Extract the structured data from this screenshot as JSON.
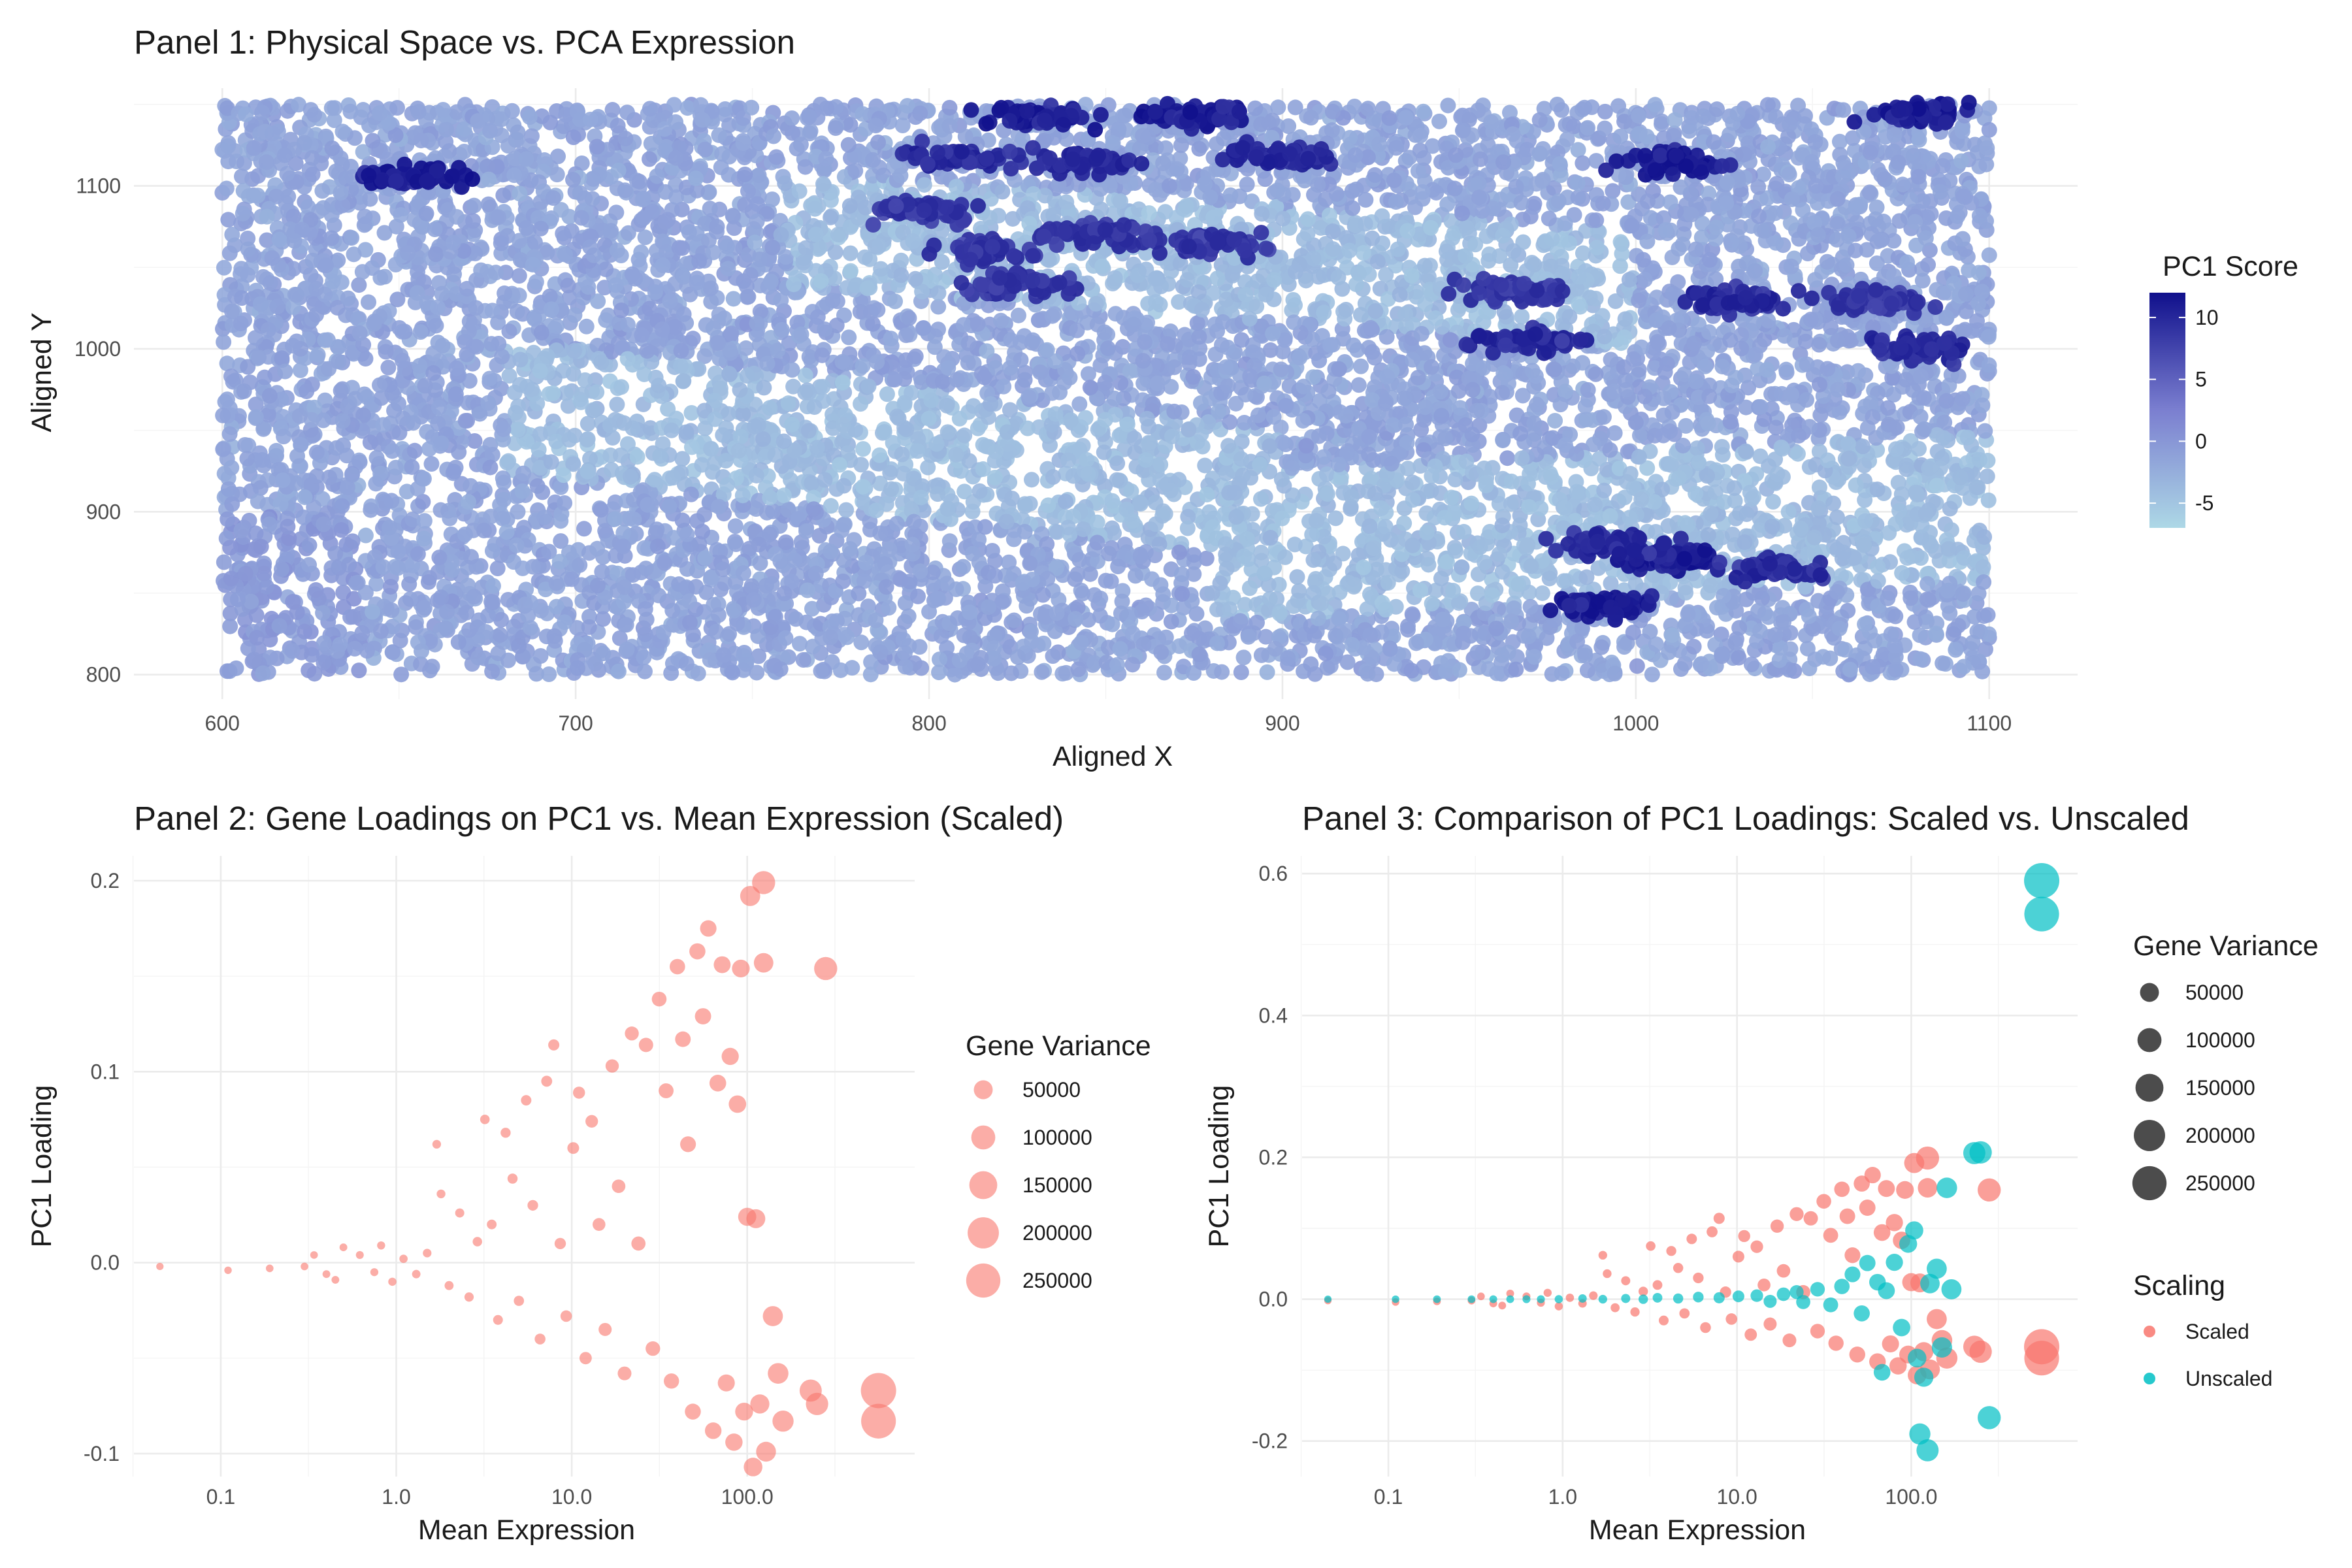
{
  "colors": {
    "gradient_low": "#add8e6",
    "gradient_mid": "#7b7fd0",
    "gradient_high": "#10108c",
    "scaled": "#f8766d",
    "unscaled": "#00bfc4",
    "size_key": "#000000"
  },
  "chart_data": [
    {
      "type": "scatter",
      "title": "Panel 1: Physical Space vs. PCA Expression",
      "xlabel": "Aligned X",
      "ylabel": "Aligned Y",
      "xlim": [
        575,
        1125
      ],
      "ylim": [
        785,
        1160
      ],
      "xticks": [
        600,
        700,
        800,
        900,
        1000,
        1100
      ],
      "yticks": [
        800,
        900,
        1000,
        1100
      ],
      "grid": true,
      "legend": {
        "title": "PC1 Score",
        "position": "right",
        "breaks": [
          10,
          5,
          0,
          -5
        ],
        "range": [
          -7,
          12
        ]
      },
      "color_by": "PC1 Score",
      "point_description": "dense tissue spots over x 600-1100, y 800-1150; background PC1 near -4 to 2 with dark clusters reaching ~12",
      "hotspots": [
        {
          "x": 655,
          "y": 1105,
          "pc1": 12
        },
        {
          "x": 830,
          "y": 1143,
          "pc1": 12
        },
        {
          "x": 875,
          "y": 1143,
          "pc1": 12
        },
        {
          "x": 1080,
          "y": 1145,
          "pc1": 12
        },
        {
          "x": 808,
          "y": 1118,
          "pc1": 11
        },
        {
          "x": 845,
          "y": 1115,
          "pc1": 11
        },
        {
          "x": 900,
          "y": 1118,
          "pc1": 11
        },
        {
          "x": 1010,
          "y": 1115,
          "pc1": 12
        },
        {
          "x": 800,
          "y": 1085,
          "pc1": 10
        },
        {
          "x": 850,
          "y": 1070,
          "pc1": 10
        },
        {
          "x": 815,
          "y": 1060,
          "pc1": 10
        },
        {
          "x": 880,
          "y": 1065,
          "pc1": 10
        },
        {
          "x": 825,
          "y": 1040,
          "pc1": 10
        },
        {
          "x": 965,
          "y": 1035,
          "pc1": 10
        },
        {
          "x": 1030,
          "y": 1030,
          "pc1": 11
        },
        {
          "x": 1070,
          "y": 1030,
          "pc1": 10
        },
        {
          "x": 970,
          "y": 1005,
          "pc1": 11
        },
        {
          "x": 1080,
          "y": 1000,
          "pc1": 11
        },
        {
          "x": 1010,
          "y": 870,
          "pc1": 12
        },
        {
          "x": 995,
          "y": 880,
          "pc1": 11
        },
        {
          "x": 1040,
          "y": 865,
          "pc1": 11
        },
        {
          "x": 990,
          "y": 842,
          "pc1": 12
        }
      ]
    },
    {
      "type": "scatter",
      "title": "Panel 2: Gene Loadings on PC1 vs. Mean Expression (Scaled)",
      "xlabel": "Mean Expression",
      "ylabel": "PC1 Loading",
      "xscale": "log10",
      "xlim": [
        0.032,
        900
      ],
      "ylim": [
        -0.112,
        0.213
      ],
      "xticks": [
        0.1,
        1.0,
        10.0,
        100.0
      ],
      "xticklabels": [
        "0.1",
        "1.0",
        "10.0",
        "100.0"
      ],
      "yticks": [
        -0.1,
        0.0,
        0.1,
        0.2
      ],
      "yticklabels": [
        "-0.1",
        "0.0",
        "0.1",
        "0.2"
      ],
      "grid": true,
      "legend": {
        "title": "Gene Variance",
        "position": "right",
        "breaks": [
          50000,
          100000,
          150000,
          200000,
          250000
        ]
      },
      "series": [
        {
          "name": "Scaled",
          "points": [
            [
              0.045,
              -0.002,
              200
            ],
            [
              0.11,
              -0.004,
              300
            ],
            [
              0.19,
              -0.003,
              400
            ],
            [
              0.3,
              -0.002,
              400
            ],
            [
              0.34,
              0.004,
              400
            ],
            [
              0.4,
              -0.006,
              500
            ],
            [
              0.45,
              -0.009,
              500
            ],
            [
              0.5,
              0.008,
              500
            ],
            [
              0.62,
              0.004,
              600
            ],
            [
              0.75,
              -0.005,
              700
            ],
            [
              0.82,
              0.009,
              800
            ],
            [
              0.95,
              -0.01,
              900
            ],
            [
              1.1,
              0.002,
              1000
            ],
            [
              1.3,
              -0.006,
              1200
            ],
            [
              1.5,
              0.005,
              1400
            ],
            [
              1.7,
              0.062,
              1500
            ],
            [
              1.8,
              0.036,
              1600
            ],
            [
              2.0,
              -0.012,
              2000
            ],
            [
              2.3,
              0.026,
              2200
            ],
            [
              2.6,
              -0.018,
              2500
            ],
            [
              2.9,
              0.011,
              2800
            ],
            [
              3.2,
              0.075,
              3000
            ],
            [
              3.5,
              0.02,
              3300
            ],
            [
              3.8,
              -0.03,
              3500
            ],
            [
              4.2,
              0.068,
              4000
            ],
            [
              4.6,
              0.044,
              4200
            ],
            [
              5.0,
              -0.02,
              4500
            ],
            [
              5.5,
              0.085,
              5000
            ],
            [
              6.0,
              0.03,
              5500
            ],
            [
              6.6,
              -0.04,
              6000
            ],
            [
              7.2,
              0.095,
              6500
            ],
            [
              7.9,
              0.114,
              7000
            ],
            [
              8.6,
              0.01,
              7500
            ],
            [
              9.3,
              -0.028,
              8000
            ],
            [
              10.2,
              0.06,
              9000
            ],
            [
              11.0,
              0.089,
              10000
            ],
            [
              12.0,
              -0.05,
              11000
            ],
            [
              13.0,
              0.074,
              12000
            ],
            [
              14.3,
              0.02,
              13000
            ],
            [
              15.5,
              -0.035,
              14000
            ],
            [
              17.0,
              0.103,
              15000
            ],
            [
              18.5,
              0.04,
              16000
            ],
            [
              20.0,
              -0.058,
              17000
            ],
            [
              22.0,
              0.12,
              18000
            ],
            [
              24.0,
              0.01,
              19000
            ],
            [
              26.5,
              0.114,
              20000
            ],
            [
              29.0,
              -0.045,
              21000
            ],
            [
              31.5,
              0.138,
              22000
            ],
            [
              34.5,
              0.09,
              23000
            ],
            [
              37.0,
              -0.062,
              25000
            ],
            [
              40.0,
              0.155,
              26000
            ],
            [
              43.0,
              0.117,
              27000
            ],
            [
              46.0,
              0.062,
              28000
            ],
            [
              49.0,
              -0.078,
              29000
            ],
            [
              52.0,
              0.163,
              30000
            ],
            [
              56.0,
              0.129,
              31000
            ],
            [
              60.0,
              0.175,
              32000
            ],
            [
              64.0,
              -0.088,
              33000
            ],
            [
              68.0,
              0.094,
              34000
            ],
            [
              72.0,
              0.156,
              35000
            ],
            [
              76.0,
              -0.063,
              36000
            ],
            [
              80.0,
              0.108,
              37000
            ],
            [
              84.0,
              -0.094,
              38000
            ],
            [
              88.0,
              0.083,
              39000
            ],
            [
              92.0,
              0.154,
              41000
            ],
            [
              96.0,
              -0.078,
              42000
            ],
            [
              100.0,
              0.024,
              44000
            ],
            [
              104.0,
              0.192,
              60000
            ],
            [
              108.0,
              -0.107,
              48000
            ],
            [
              112.0,
              0.023,
              50000
            ],
            [
              118.0,
              -0.074,
              52000
            ],
            [
              124.0,
              0.199,
              90000
            ],
            [
              124.0,
              0.157,
              55000
            ],
            [
              128.0,
              -0.099,
              58000
            ],
            [
              140.0,
              -0.028,
              60000
            ],
            [
              150.0,
              -0.058,
              65000
            ],
            [
              160.0,
              -0.083,
              70000
            ],
            [
              230.0,
              -0.067,
              80000
            ],
            [
              250.0,
              -0.074,
              82000
            ],
            [
              280.0,
              0.154,
              90000
            ],
            [
              560.0,
              -0.067,
              270000
            ],
            [
              560.0,
              -0.083,
              260000
            ]
          ]
        }
      ]
    },
    {
      "type": "scatter",
      "title": "Panel 3: Comparison of PC1 Loadings: Scaled vs. Unscaled",
      "xlabel": "Mean Expression",
      "ylabel": "PC1 Loading",
      "xscale": "log10",
      "xlim": [
        0.032,
        900
      ],
      "ylim": [
        -0.25,
        0.625
      ],
      "xticks": [
        0.1,
        1.0,
        10.0,
        100.0
      ],
      "xticklabels": [
        "0.1",
        "1.0",
        "10.0",
        "100.0"
      ],
      "yticks": [
        -0.2,
        0.0,
        0.2,
        0.4,
        0.6
      ],
      "yticklabels": [
        "-0.2",
        "0.0",
        "0.2",
        "0.4",
        "0.6"
      ],
      "grid": true,
      "legend": [
        {
          "title": "Gene Variance",
          "position": "right",
          "breaks": [
            50000,
            100000,
            150000,
            200000,
            250000
          ]
        },
        {
          "title": "Scaling",
          "position": "right",
          "entries": [
            "Scaled",
            "Unscaled"
          ]
        }
      ],
      "series": [
        {
          "name": "Scaled",
          "same_points_as": "Panel 2"
        },
        {
          "name": "Unscaled",
          "points": [
            [
              0.045,
              0.0,
              200
            ],
            [
              0.11,
              0.0,
              300
            ],
            [
              0.19,
              0.0,
              400
            ],
            [
              0.3,
              0.0,
              400
            ],
            [
              0.4,
              0.0,
              500
            ],
            [
              0.5,
              0.0,
              500
            ],
            [
              0.62,
              0.0,
              600
            ],
            [
              0.75,
              0.0,
              700
            ],
            [
              0.95,
              0.0,
              900
            ],
            [
              1.3,
              0.001,
              1200
            ],
            [
              1.7,
              0.0,
              1500
            ],
            [
              2.3,
              0.001,
              2200
            ],
            [
              2.9,
              0.0,
              2800
            ],
            [
              3.5,
              0.002,
              3300
            ],
            [
              4.6,
              0.001,
              4200
            ],
            [
              6.0,
              0.003,
              5500
            ],
            [
              7.9,
              0.002,
              7000
            ],
            [
              10.2,
              0.004,
              9000
            ],
            [
              13.0,
              0.005,
              12000
            ],
            [
              15.5,
              -0.003,
              14000
            ],
            [
              18.5,
              0.007,
              16000
            ],
            [
              22.0,
              0.01,
              18000
            ],
            [
              24.0,
              -0.004,
              19000
            ],
            [
              29.0,
              0.014,
              21000
            ],
            [
              34.5,
              -0.008,
              23000
            ],
            [
              40.0,
              0.018,
              26000
            ],
            [
              46.0,
              0.035,
              28000
            ],
            [
              52.0,
              -0.02,
              30000
            ],
            [
              56.0,
              0.051,
              31000
            ],
            [
              64.0,
              0.024,
              33000
            ],
            [
              68.0,
              -0.103,
              34000
            ],
            [
              72.0,
              0.012,
              35000
            ],
            [
              80.0,
              0.052,
              37000
            ],
            [
              88.0,
              -0.04,
              39000
            ],
            [
              96.0,
              0.078,
              42000
            ],
            [
              104.0,
              0.097,
              44000
            ],
            [
              108.0,
              -0.083,
              48000
            ],
            [
              112.0,
              -0.19,
              70000
            ],
            [
              118.0,
              -0.11,
              52000
            ],
            [
              124.0,
              -0.213,
              80000
            ],
            [
              128.0,
              0.022,
              55000
            ],
            [
              140.0,
              0.043,
              60000
            ],
            [
              150.0,
              -0.068,
              62000
            ],
            [
              160.0,
              0.157,
              64000
            ],
            [
              170.0,
              0.014,
              60000
            ],
            [
              230.0,
              0.206,
              80000
            ],
            [
              250.0,
              0.207,
              82000
            ],
            [
              280.0,
              -0.167,
              90000
            ],
            [
              560.0,
              0.59,
              270000
            ],
            [
              560.0,
              0.543,
              260000
            ]
          ]
        }
      ]
    }
  ]
}
